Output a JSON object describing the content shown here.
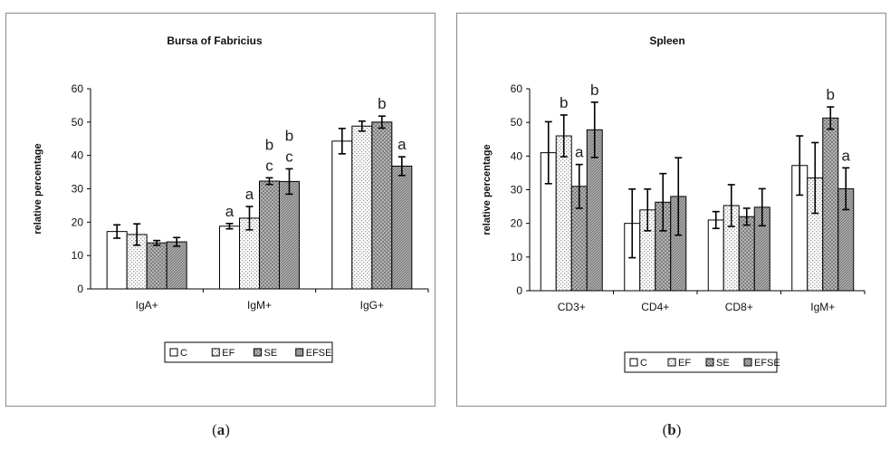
{
  "chart_data": [
    {
      "type": "bar",
      "title": "Bursa of Fabricius",
      "xlabel": "",
      "ylabel": "relative percentage",
      "ylim": [
        0,
        60
      ],
      "yticks": [
        "0",
        "10",
        "20",
        "30",
        "40",
        "50",
        "60"
      ],
      "categories": [
        "IgA+",
        "IgM+",
        "IgG+"
      ],
      "series": [
        {
          "name": "C",
          "pattern": "white",
          "values": [
            17.2,
            18.8,
            44.3
          ],
          "errors": [
            2.0,
            0.8,
            3.8
          ],
          "labels": [
            "",
            "a",
            ""
          ]
        },
        {
          "name": "EF",
          "pattern": "dots",
          "values": [
            16.3,
            21.2,
            48.8
          ],
          "errors": [
            3.2,
            3.5,
            1.5
          ],
          "labels": [
            "",
            "a",
            ""
          ]
        },
        {
          "name": "SE",
          "pattern": "cross",
          "values": [
            13.8,
            32.3,
            50.0
          ],
          "errors": [
            0.7,
            1.0,
            1.8
          ],
          "labels": [
            "",
            "b\nc",
            "b"
          ]
        },
        {
          "name": "EFSE",
          "pattern": "diagonal",
          "values": [
            14.1,
            32.2,
            36.8
          ],
          "errors": [
            1.3,
            3.8,
            2.8
          ],
          "labels": [
            "",
            "b\nc",
            "a"
          ]
        }
      ],
      "legend": [
        "C",
        "EF",
        "SE",
        "EFSE"
      ],
      "legend_position": "bottom"
    },
    {
      "type": "bar",
      "title": "Spleen",
      "xlabel": "",
      "ylabel": "relative percentage",
      "ylim": [
        0,
        60
      ],
      "yticks": [
        "0",
        "10",
        "20",
        "30",
        "40",
        "50",
        "60"
      ],
      "categories": [
        "CD3+",
        "CD4+",
        "CD8+",
        "IgM+"
      ],
      "series": [
        {
          "name": "C",
          "pattern": "white",
          "values": [
            41.0,
            20.0,
            21.0,
            37.2
          ],
          "errors": [
            9.2,
            10.2,
            2.5,
            8.8
          ],
          "labels": [
            "",
            "",
            "",
            ""
          ]
        },
        {
          "name": "EF",
          "pattern": "dots",
          "values": [
            46.0,
            24.0,
            25.3,
            33.5
          ],
          "errors": [
            6.2,
            6.2,
            6.2,
            10.5
          ],
          "labels": [
            "b",
            "",
            "",
            ""
          ]
        },
        {
          "name": "SE",
          "pattern": "cross",
          "values": [
            31.0,
            26.3,
            22.0,
            51.3
          ],
          "errors": [
            6.5,
            8.5,
            2.5,
            3.3
          ],
          "labels": [
            "a",
            "",
            "",
            "b"
          ]
        },
        {
          "name": "EFSE",
          "pattern": "diagonal",
          "values": [
            47.8,
            28.0,
            24.8,
            30.3
          ],
          "errors": [
            8.2,
            11.5,
            5.5,
            6.2
          ],
          "labels": [
            "b",
            "",
            "",
            "a"
          ]
        }
      ],
      "legend": [
        "C",
        "EF",
        "SE",
        "EFSE"
      ],
      "legend_position": "bottom"
    }
  ],
  "captions": [
    "(a)",
    "(b)"
  ],
  "caption_letters": [
    "a",
    "b"
  ],
  "colors": {
    "bar_stroke": "#000000",
    "white_fill": "#ffffff",
    "dot_color": "#9a9a9a",
    "cross_color": "#7a7a7a",
    "diagonal_color": "#6e6e6e",
    "frame": "#8a8a8a",
    "text": "#111111"
  }
}
